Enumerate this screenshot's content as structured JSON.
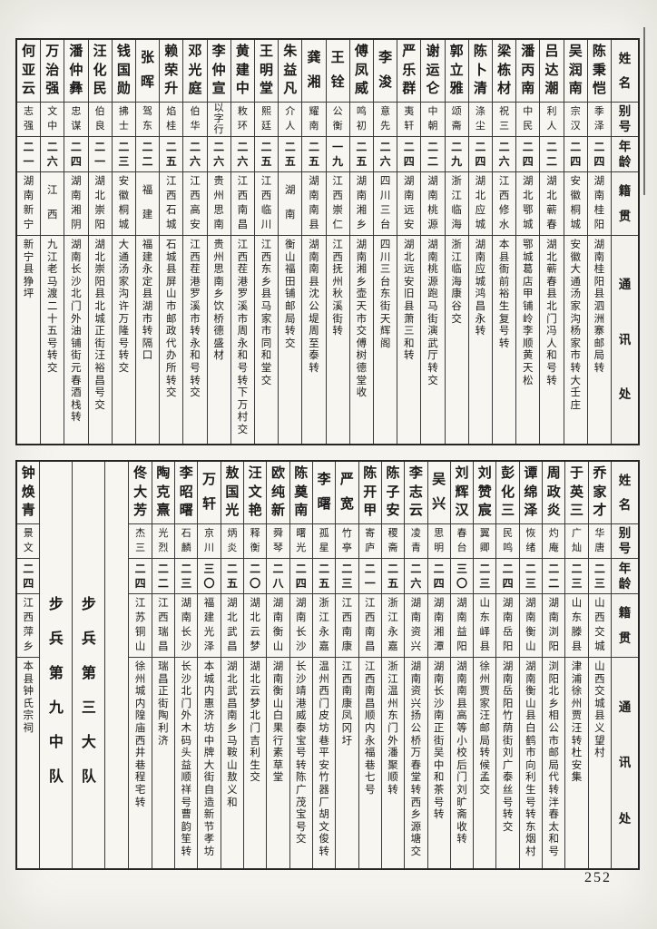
{
  "page": {
    "number": "252"
  },
  "table_headers": {
    "name": "姓名",
    "alias": "别号",
    "age": "年龄",
    "native": "籍贯",
    "contact": "通讯处"
  },
  "tables": [
    {
      "id": "top",
      "entries": [
        {
          "type": "person",
          "name": "陈秉恺",
          "alias": "季泽",
          "age": "二四",
          "native": "湖南桂阳",
          "contact": "湖南桂阳县泗洲寨邮局转"
        },
        {
          "type": "person",
          "name": "吴润南",
          "alias": "宗汉",
          "age": "二四",
          "native": "安徽桐城",
          "contact": "安徽大通汤家沟杨家市转大壬庄"
        },
        {
          "type": "person",
          "name": "吕达潮",
          "alias": "利人",
          "age": "二二",
          "native": "湖北蕲春",
          "contact": "湖北蕲春县北门冯人和号转"
        },
        {
          "type": "person",
          "name": "潘丙南",
          "alias": "中民",
          "age": "二四",
          "native": "湖北鄂城",
          "contact": "鄂城葛店甲铺岭李顺黄天松"
        },
        {
          "type": "person",
          "name": "梁栋材",
          "alias": "祝三",
          "age": "二六",
          "native": "江西修水",
          "contact": "本县衙前裕生复号转"
        },
        {
          "type": "person",
          "name": "陈卜清",
          "alias": "涤尘",
          "age": "二四",
          "native": "湖北应城",
          "contact": "湖南应城鸿昌永转"
        },
        {
          "type": "person",
          "name": "郭立雅",
          "alias": "颂斋",
          "age": "二九",
          "native": "浙江临海",
          "contact": "浙江临海康谷交"
        },
        {
          "type": "person",
          "name": "谢运仑",
          "alias": "中朝",
          "age": "二二",
          "native": "湖南桃源",
          "contact": "湖南桃源跑马街演武厅转交"
        },
        {
          "type": "person",
          "name": "严乐群",
          "alias": "夷轩",
          "age": "二四",
          "native": "湖南远安",
          "contact": "湖北远安旧县萧三和转"
        },
        {
          "type": "person",
          "name": "李浚",
          "alias": "意先",
          "age": "二六",
          "native": "四川三台",
          "contact": "四川三台东街天辉阁"
        },
        {
          "type": "person",
          "name": "傅凤威",
          "alias": "鸣初",
          "age": "二五",
          "native": "湖南湘乡",
          "contact": "湖南湘乡壶天市交傅树德堂收"
        },
        {
          "type": "person",
          "name": "王铨",
          "alias": "公衡",
          "age": "一九",
          "native": "江西崇仁",
          "contact": "江西抚州秋溪街转"
        },
        {
          "type": "person",
          "name": "龚湘",
          "alias": "耀南",
          "age": "二五",
          "native": "湖南南县",
          "contact": "湖南南县沈公堤周至泰转"
        },
        {
          "type": "person",
          "name": "朱益凡",
          "alias": "介人",
          "age": "二五",
          "native": "湖南",
          "contact": "衡山福田铺邮局转交"
        },
        {
          "type": "person",
          "name": "王明堂",
          "alias": "熙廷",
          "age": "二五",
          "native": "江西临川",
          "contact": "江西东乡县马家市同和堂交"
        },
        {
          "type": "person",
          "name": "黄建中",
          "alias": "敉环",
          "age": "二六",
          "native": "江西南昌",
          "contact": "江西茬港罗溪市周永和号转下万村交"
        },
        {
          "type": "person",
          "name": "李仲宣",
          "alias": "以字行",
          "age": "二六",
          "native": "贵州思南",
          "contact": "贵州思南乡饮桥德盛材"
        },
        {
          "type": "person",
          "name": "邓光庭",
          "alias": "伯华",
          "age": "二六",
          "native": "江西高安",
          "contact": "江西茬港罗溪市转永和号转交"
        },
        {
          "type": "person",
          "name": "赖荣升",
          "alias": "焰桂",
          "age": "二五",
          "native": "江西石城",
          "contact": "石城县屏山市邮政代办所转交"
        },
        {
          "type": "person",
          "name": "张晖",
          "alias": "驾东",
          "age": "二二",
          "native": "福建",
          "contact": "福建永定县湖市转隔口"
        },
        {
          "type": "person",
          "name": "钱国勋",
          "alias": "拂士",
          "age": "二三",
          "native": "安徽桐城",
          "contact": "大通汤家沟许万隆号转交"
        },
        {
          "type": "person",
          "name": "汪化民",
          "alias": "伯良",
          "age": "二一",
          "native": "湖北崇阳",
          "contact": "湖北崇阳县北城正街汪裕昌号交"
        },
        {
          "type": "person",
          "name": "潘仲彝",
          "alias": "忠谋",
          "age": "二四",
          "native": "湖南湘阴",
          "contact": "湖南长沙北门外油铺街元春酒栈转"
        },
        {
          "type": "person",
          "name": "万治强",
          "alias": "文中",
          "age": "二六",
          "native": "江西",
          "contact": "九江老马渡二十五号转交"
        },
        {
          "type": "person",
          "name": "何亚云",
          "alias": "志强",
          "age": "二一",
          "native": "湖南新宁",
          "contact": "新宁县狰坪"
        }
      ]
    },
    {
      "id": "bottom",
      "entries": [
        {
          "type": "person",
          "name": "乔家才",
          "alias": "华唐",
          "age": "二三",
          "native": "山西交城",
          "contact": "山西交城县义望村"
        },
        {
          "type": "person",
          "name": "于英三",
          "alias": "广灿",
          "age": "二三",
          "native": "山东滕县",
          "contact": "津浦徐州贾汪转杜安集"
        },
        {
          "type": "person",
          "name": "周政炎",
          "alias": "灼庵",
          "age": "二二",
          "native": "湖南浏阳",
          "contact": "浏阳北乡相公市邮局代转泮春太和号"
        },
        {
          "type": "person",
          "name": "谭绵泽",
          "alias": "恢绪",
          "age": "二三",
          "native": "湖南衡山",
          "contact": "湖南衡山县白鹤市向利生号转东烟村"
        },
        {
          "type": "person",
          "name": "彭化三",
          "alias": "民鸣",
          "age": "二四",
          "native": "湖南岳阳",
          "contact": "湖南岳阳竹荫街刘广泰丝号转交"
        },
        {
          "type": "person",
          "name": "刘赞宸",
          "alias": "翼卿",
          "age": "二三",
          "native": "山东峄县",
          "contact": "徐州贾家汪邮局转候孟交"
        },
        {
          "type": "person",
          "name": "刘辉汉",
          "alias": "春台",
          "age": "三〇",
          "native": "湖南益阳",
          "contact": "湖南南县高等小校后门刘旷斋收转"
        },
        {
          "type": "person",
          "name": "吴兴",
          "alias": "思明",
          "age": "二四",
          "native": "湖南湘潭",
          "contact": "湖南长沙南正街吴中和茶号转"
        },
        {
          "type": "person",
          "name": "李志云",
          "alias": "凌青",
          "age": "二六",
          "native": "湖南资兴",
          "contact": "湖南资兴扬公桥万春堂转西乡源塘交"
        },
        {
          "type": "person",
          "name": "陈子安",
          "alias": "稷斋",
          "age": "二五",
          "native": "浙江永嘉",
          "contact": "浙江温州东门外潘聚顺转"
        },
        {
          "type": "person",
          "name": "陈开甲",
          "alias": "寄庐",
          "age": "二一",
          "native": "江西南昌",
          "contact": "江西南昌顺内永福巷七号"
        },
        {
          "type": "person",
          "name": "严宽",
          "alias": "竹亭",
          "age": "二三",
          "native": "江西南康",
          "contact": "江西南康凤冈圩"
        },
        {
          "type": "person",
          "name": "李曙",
          "alias": "孤星",
          "age": "二五",
          "native": "浙江永嘉",
          "contact": "温州西门皮坊巷平安竹器厂胡文俊转"
        },
        {
          "type": "person",
          "name": "陈奠南",
          "alias": "曙光",
          "age": "二四",
          "native": "湖南长沙",
          "contact": "长沙靖港威泰宝号转陈广茂宝号交"
        },
        {
          "type": "person",
          "name": "欧纯新",
          "alias": "舜琴",
          "age": "二八",
          "native": "湖南衡山",
          "contact": "湖南衡山白果行素草堂"
        },
        {
          "type": "person",
          "name": "汪文艳",
          "alias": "释衡",
          "age": "二〇",
          "native": "湖北云梦",
          "contact": "湖北云梦北门吉利生交"
        },
        {
          "type": "person",
          "name": "敖国光",
          "alias": "炳炎",
          "age": "二五",
          "native": "湖北武昌",
          "contact": "湖北武昌南乡马鞍山敖义和"
        },
        {
          "type": "person",
          "name": "万轩",
          "alias": "京川",
          "age": "三〇",
          "native": "福建光泽",
          "contact": "本城内惠济坊中牌大街自造新节孝坊"
        },
        {
          "type": "person",
          "name": "李昭曙",
          "alias": "石麟",
          "age": "二三",
          "native": "湖南长沙",
          "contact": "长沙北门外木码头益顺祥号曹韵笙转"
        },
        {
          "type": "person",
          "name": "陶克熹",
          "alias": "光烈",
          "age": "二二",
          "native": "江西瑞昌",
          "contact": "瑞昌正街陶利济"
        },
        {
          "type": "person",
          "name": "佟大芳",
          "alias": "杰三",
          "age": "二四",
          "native": "江苏铜山",
          "contact": "徐州城内隍庙西井巷程宅转"
        },
        {
          "type": "blank"
        },
        {
          "type": "divider",
          "label": "步兵第三大队"
        },
        {
          "type": "divider",
          "label": "步兵第九中队"
        },
        {
          "type": "person",
          "name": "钟焕青",
          "alias": "景文",
          "age": "二四",
          "native": "江西萍乡",
          "contact": "本县钟氏宗祠"
        }
      ]
    }
  ]
}
